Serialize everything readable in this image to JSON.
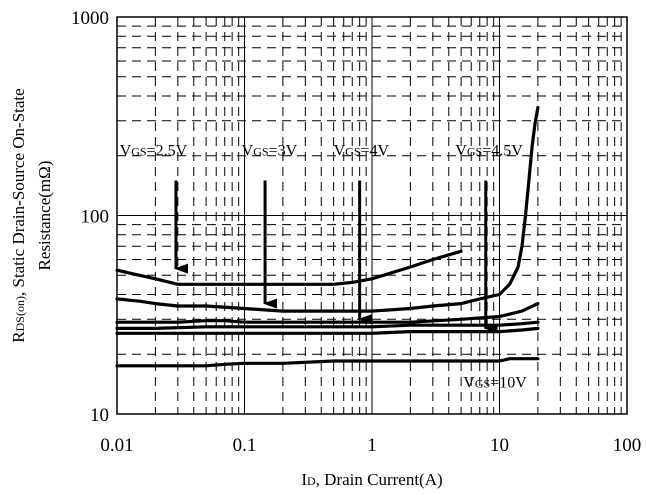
{
  "chart_data": {
    "type": "line",
    "x_scale": "log",
    "y_scale": "log",
    "xlim": [
      0.01,
      100
    ],
    "ylim": [
      10,
      1000
    ],
    "grid": true,
    "x_ticks": [
      {
        "value": 0.01,
        "label": "0.01"
      },
      {
        "value": 0.1,
        "label": "0.1"
      },
      {
        "value": 1,
        "label": "1"
      },
      {
        "value": 10,
        "label": "10"
      },
      {
        "value": 100,
        "label": "100"
      }
    ],
    "y_ticks": [
      {
        "value": 10,
        "label": "10"
      },
      {
        "value": 100,
        "label": "100"
      },
      {
        "value": 1000,
        "label": "1000"
      }
    ],
    "xlabel": {
      "sub_main": "I",
      "sub": "D",
      "rest": ", Drain Current(A)"
    },
    "ylabel": {
      "line1_main": "R",
      "line1_sub": "DS(on)",
      "line1_rest": ", Static Drain-Source On-State",
      "line2": "Resistance(mΩ)"
    },
    "series": [
      {
        "x": [
          0.01,
          0.015,
          0.02,
          0.03,
          0.05,
          0.08,
          0.1,
          0.2,
          0.3,
          0.5,
          0.7,
          1,
          1.5,
          2,
          3,
          5
        ],
        "y": [
          53,
          50,
          48,
          45,
          45,
          45,
          45,
          45,
          45,
          45,
          46,
          48,
          52,
          55,
          60,
          66
        ]
      },
      {
        "x": [
          0.01,
          0.015,
          0.02,
          0.03,
          0.05,
          0.1,
          0.2,
          0.5,
          1,
          2,
          3,
          5,
          7,
          10,
          12,
          14,
          15,
          16,
          17,
          18,
          19,
          20
        ],
        "y": [
          38,
          37,
          36,
          35,
          35,
          34,
          33,
          33,
          33,
          34,
          35,
          36,
          38,
          40,
          45,
          55,
          70,
          100,
          150,
          220,
          290,
          350
        ]
      },
      {
        "x": [
          0.01,
          0.02,
          0.03,
          0.05,
          0.07,
          0.1,
          0.2,
          0.5,
          1,
          2,
          5,
          10,
          15,
          20
        ],
        "y": [
          29,
          29,
          29,
          29.5,
          29.5,
          29,
          29,
          29,
          29,
          29,
          30,
          31,
          33,
          36
        ]
      },
      {
        "x": [
          0.01,
          0.02,
          0.05,
          0.1,
          0.2,
          0.5,
          1,
          2,
          5,
          10,
          15,
          20
        ],
        "y": [
          27,
          27,
          27.5,
          27.5,
          27.5,
          27.5,
          27.5,
          28,
          28,
          28,
          28.5,
          29
        ]
      },
      {
        "x": [
          0.01,
          0.02,
          0.05,
          0.1,
          0.2,
          0.5,
          1,
          2,
          5,
          10,
          15,
          20
        ],
        "y": [
          25.5,
          25.5,
          25.5,
          25.5,
          25.5,
          25.5,
          25.5,
          26,
          26,
          26,
          26.5,
          27
        ]
      },
      {
        "x": [
          0.01,
          0.02,
          0.05,
          0.07,
          0.1,
          0.2,
          0.5,
          1,
          2,
          5,
          10,
          12,
          15,
          20
        ],
        "y": [
          17.5,
          17.5,
          17.5,
          17.8,
          18,
          18,
          18.5,
          18.5,
          18.5,
          18.5,
          18.5,
          19,
          19,
          19
        ]
      }
    ],
    "annotations": [
      {
        "main": "V",
        "sub": "GS",
        "rest": "=2.5V",
        "label_x": 0.0105,
        "label_y": 200,
        "arrow_x": 0.029,
        "arrow_from": 150,
        "arrow_to": 54
      },
      {
        "main": "V",
        "sub": "GS",
        "rest": "=3V",
        "label_x": 0.095,
        "label_y": 200,
        "arrow_x": 0.145,
        "arrow_from": 150,
        "arrow_to": 36
      },
      {
        "main": "V",
        "sub": "GS",
        "rest": "=4V",
        "label_x": 0.5,
        "label_y": 200,
        "arrow_x": 0.8,
        "arrow_from": 150,
        "arrow_to": 30
      },
      {
        "main": "V",
        "sub": "GS",
        "rest": "=4.5V",
        "label_x": 4.5,
        "label_y": 200,
        "arrow_x": 7.8,
        "arrow_from": 150,
        "arrow_to": 27
      },
      {
        "main": "V",
        "sub": "GS",
        "rest": "=10V",
        "label_x": 5.2,
        "label_y": 13.6
      }
    ]
  }
}
